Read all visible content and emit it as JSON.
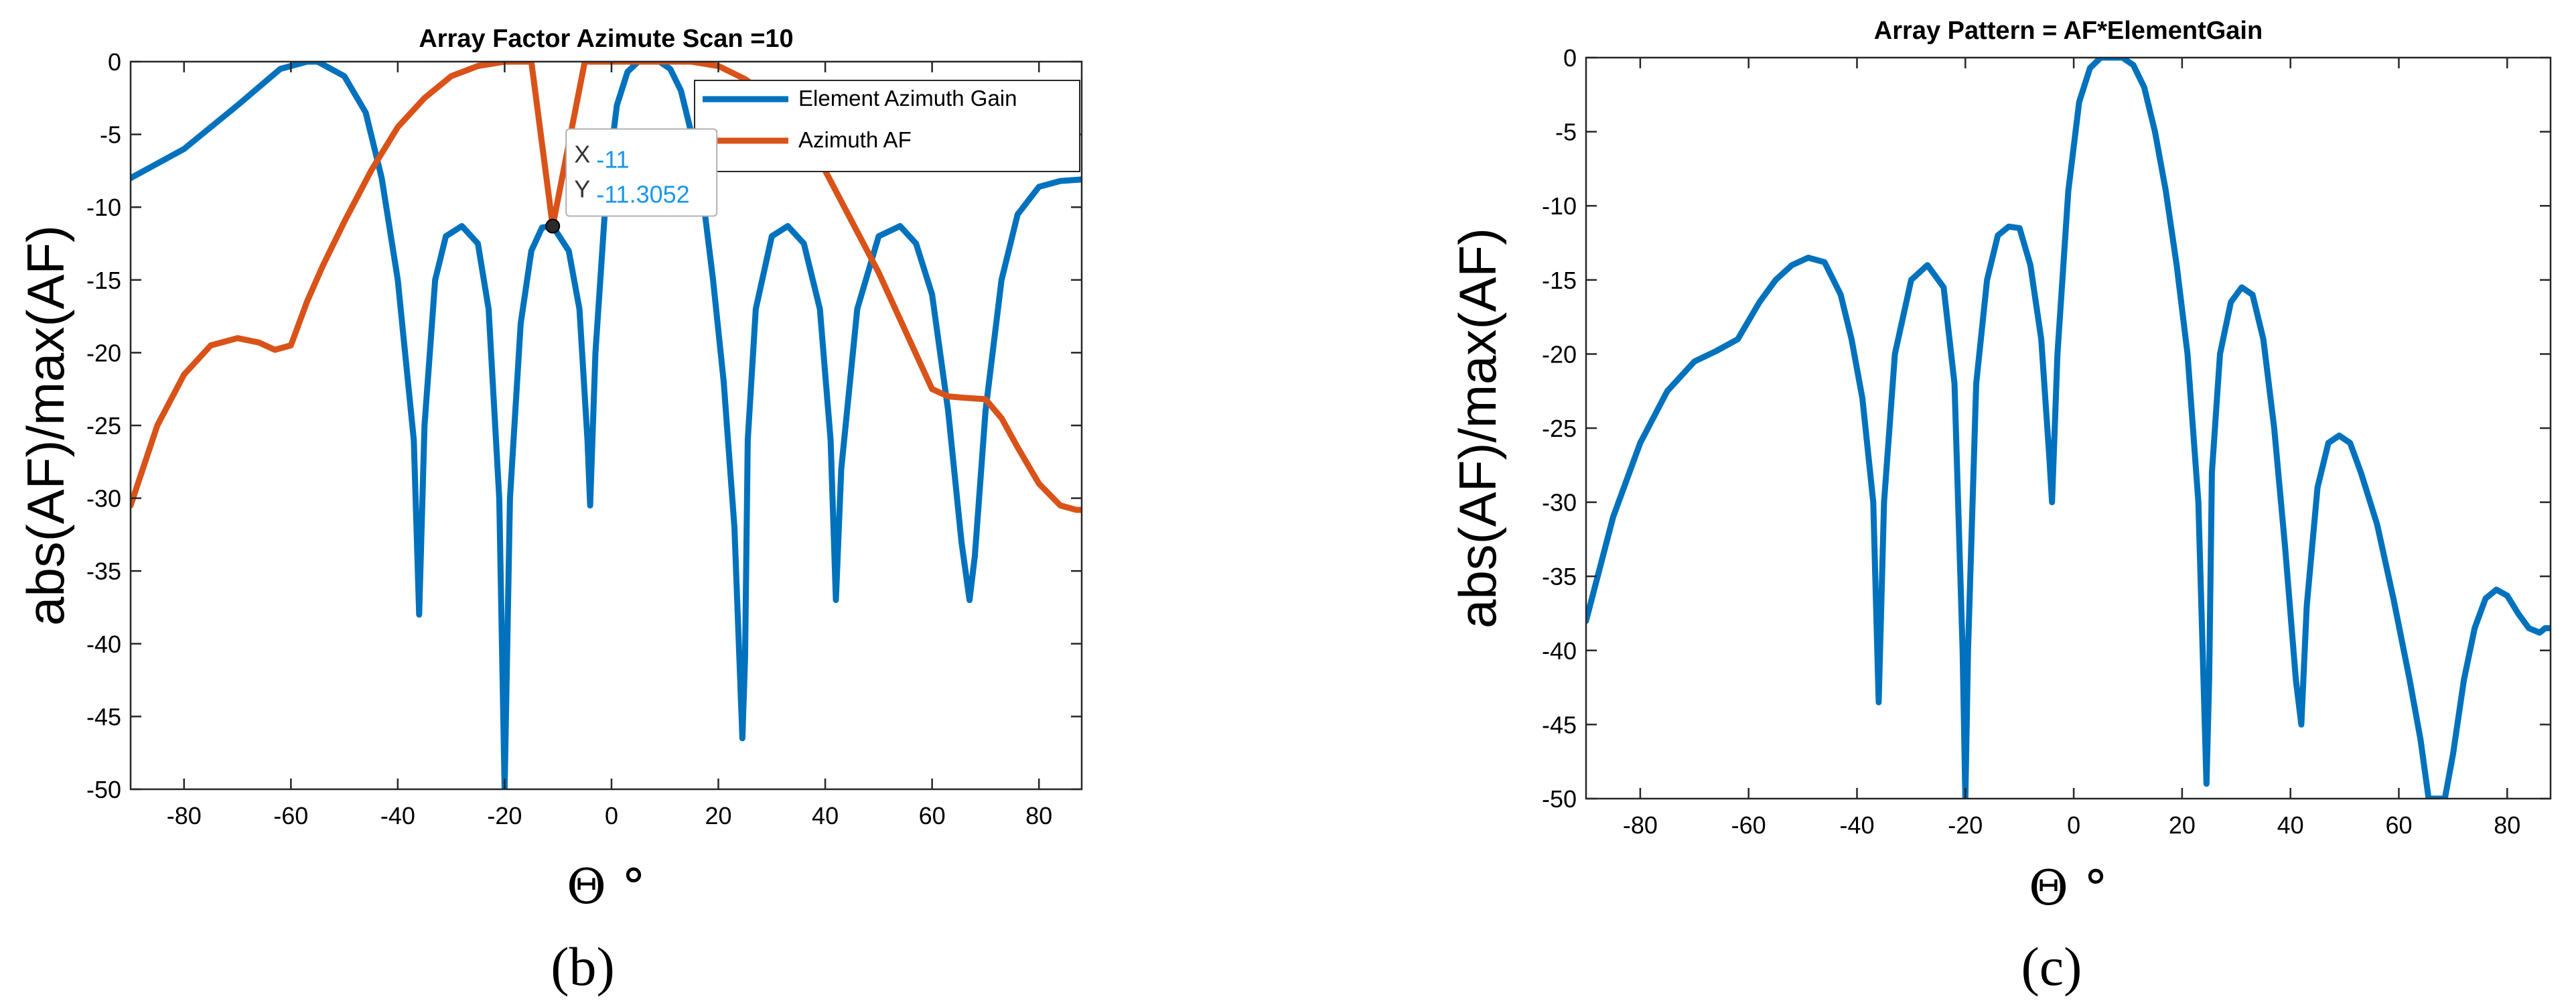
{
  "chart_data": [
    {
      "type": "line",
      "panel_label": "(b)",
      "title": "Array Factor Azimute Scan =10",
      "xlabel": "Θ °",
      "ylabel": "abs(AF)/max(AF)",
      "xlim": [
        -90,
        88
      ],
      "ylim": [
        -50,
        0
      ],
      "xticks": [
        -80,
        -60,
        -40,
        -20,
        0,
        20,
        40,
        60,
        80
      ],
      "yticks": [
        0,
        -5,
        -10,
        -15,
        -20,
        -25,
        -30,
        -35,
        -40,
        -45,
        -50
      ],
      "grid": false,
      "legend_position": "top-right",
      "series": [
        {
          "name": "Element Azimuth Gain",
          "color": "#0072bd",
          "x": [
            -90,
            -80,
            -70,
            -62,
            -57,
            -55,
            -50,
            -46,
            -43,
            -40,
            -37,
            -36,
            -35,
            -33,
            -31,
            -28,
            -25,
            -23,
            -21,
            -20,
            -19,
            -17,
            -15,
            -13,
            -11,
            -8,
            -6,
            -4.5,
            -4,
            -3,
            -1,
            1,
            3,
            5,
            7,
            9,
            11,
            13,
            15,
            17,
            19,
            21,
            23,
            24.5,
            25,
            25.5,
            27,
            30,
            33,
            36,
            39,
            41,
            42,
            43,
            46,
            50,
            54,
            57,
            60,
            63,
            65.5,
            67,
            68,
            70,
            73,
            76,
            80,
            84,
            88
          ],
          "y": [
            -8,
            -6,
            -3,
            -0.5,
            0,
            0,
            -1,
            -3.5,
            -8,
            -15,
            -26,
            -38,
            -25,
            -15,
            -12,
            -11.3,
            -12.5,
            -17,
            -30,
            -50,
            -30,
            -18,
            -13,
            -11.4,
            -11.3,
            -13,
            -17,
            -26,
            -30.5,
            -20,
            -9,
            -3,
            -0.7,
            0,
            0,
            0,
            -0.5,
            -2,
            -5,
            -9,
            -15,
            -22,
            -32,
            -46.5,
            -41,
            -26,
            -17,
            -12,
            -11.3,
            -12.5,
            -17,
            -26,
            -37,
            -28,
            -17,
            -12,
            -11.3,
            -12.5,
            -16,
            -24,
            -33,
            -37,
            -34,
            -24,
            -15,
            -10.5,
            -8.6,
            -8.2,
            -8.1
          ]
        },
        {
          "name": "Azimuth AF",
          "color": "#d95319",
          "x": [
            -90,
            -85,
            -80,
            -75,
            -70,
            -66,
            -63,
            -60,
            -57,
            -54,
            -50,
            -45,
            -40,
            -35,
            -30,
            -25,
            -20,
            -15,
            -11,
            -5,
            0,
            5,
            10,
            15,
            20,
            25,
            30,
            35,
            40,
            45,
            50,
            55,
            60,
            63,
            66,
            70,
            73,
            76,
            80,
            84,
            87,
            88
          ],
          "y": [
            -30.5,
            -25,
            -21.5,
            -19.5,
            -19,
            -19.3,
            -19.8,
            -19.5,
            -16.5,
            -14,
            -11,
            -7.5,
            -4.5,
            -2.5,
            -1,
            -0.3,
            0,
            0,
            -11.3052,
            0,
            0,
            0,
            0,
            0,
            -0.3,
            -1.2,
            -2.5,
            -4.5,
            -7.5,
            -11,
            -14.5,
            -18.5,
            -22.5,
            -23,
            -23.1,
            -23.2,
            -24.5,
            -26.5,
            -29,
            -30.5,
            -30.8,
            -30.8
          ]
        }
      ],
      "annotations": [
        {
          "type": "datatip",
          "x": -11,
          "y": -11.3052,
          "x_label": "X",
          "x_value": "-11",
          "y_label": "Y",
          "y_value": "-11.3052"
        }
      ]
    },
    {
      "type": "line",
      "panel_label": "(c)",
      "title": "Array Pattern = AF*ElementGain",
      "xlabel": "Θ °",
      "ylabel": "abs(AF)/max(AF)",
      "xlim": [
        -90,
        88
      ],
      "ylim": [
        -50,
        0
      ],
      "xticks": [
        -80,
        -60,
        -40,
        -20,
        0,
        20,
        40,
        60,
        80
      ],
      "yticks": [
        0,
        -5,
        -10,
        -15,
        -20,
        -25,
        -30,
        -35,
        -40,
        -45,
        -50
      ],
      "grid": false,
      "series": [
        {
          "name": "",
          "color": "#0072bd",
          "x": [
            -90,
            -85,
            -80,
            -75,
            -70,
            -66,
            -62,
            -58,
            -55,
            -52,
            -49,
            -46,
            -43,
            -41,
            -39,
            -37,
            -36,
            -35,
            -33,
            -30,
            -27,
            -24,
            -22,
            -20.5,
            -20,
            -19.5,
            -18,
            -16,
            -14,
            -12,
            -10,
            -8,
            -6,
            -4.5,
            -4,
            -3,
            -1,
            1,
            3,
            5,
            7,
            9,
            11,
            13,
            15,
            17,
            19,
            21,
            23,
            24.5,
            25,
            25.5,
            27,
            29,
            31,
            33,
            35,
            37,
            39,
            41,
            42,
            43,
            45,
            47,
            49,
            51,
            53,
            56,
            59,
            62,
            64,
            65.5,
            66.5,
            67.5,
            68.5,
            70,
            72,
            74,
            76,
            78,
            80,
            82,
            84,
            86,
            87,
            88
          ],
          "y": [
            -38,
            -31,
            -26,
            -22.5,
            -20.5,
            -19.8,
            -19,
            -16.5,
            -15,
            -14,
            -13.5,
            -13.8,
            -16,
            -19,
            -23,
            -30,
            -43.5,
            -30,
            -20,
            -15,
            -14,
            -15.5,
            -22,
            -40,
            -50,
            -40,
            -22,
            -15,
            -12,
            -11.4,
            -11.5,
            -14,
            -19,
            -27,
            -30,
            -20,
            -9,
            -3,
            -0.7,
            0,
            0,
            0,
            -0.5,
            -2,
            -5,
            -9,
            -14,
            -20,
            -30,
            -49,
            -42,
            -28,
            -20,
            -16.5,
            -15.5,
            -16,
            -19,
            -25,
            -33,
            -42,
            -45,
            -37,
            -29,
            -26,
            -25.5,
            -26,
            -28,
            -31.5,
            -36.5,
            -42,
            -46,
            -50,
            -50,
            -50,
            -50,
            -47,
            -42,
            -38.5,
            -36.5,
            -35.9,
            -36.3,
            -37.5,
            -38.5,
            -38.8,
            -38.5,
            -38.5
          ]
        }
      ]
    }
  ]
}
